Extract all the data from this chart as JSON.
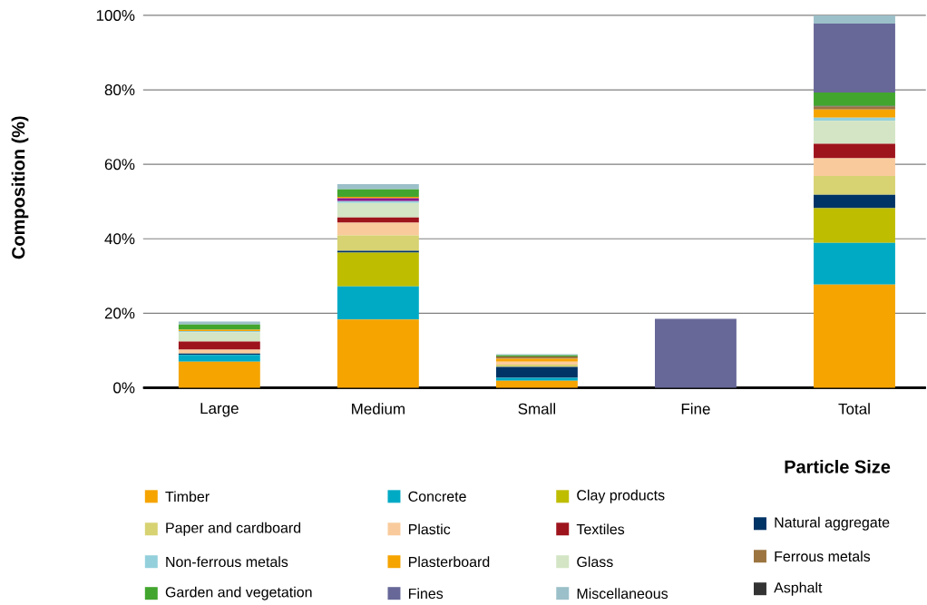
{
  "chart_data": {
    "type": "bar",
    "stacked": true,
    "xlabel": "Particle Size",
    "ylabel": "Composition (%)",
    "categories": [
      "Large",
      "Medium",
      "Small",
      "Fine",
      "Total"
    ],
    "ylim": [
      0,
      100
    ],
    "yticks": [
      {
        "value": 0,
        "label": "0%"
      },
      {
        "value": 20,
        "label": "20%"
      },
      {
        "value": 40,
        "label": "40%"
      },
      {
        "value": 60,
        "label": "60%"
      },
      {
        "value": 80,
        "label": "80%"
      },
      {
        "value": 100,
        "label": "100%"
      }
    ],
    "grid": "y",
    "legend": "bottom",
    "series": [
      {
        "name": "Timber",
        "color": "#f5a400",
        "values": [
          7.0,
          18.3,
          1.9,
          null,
          27.7
        ]
      },
      {
        "name": "Concrete",
        "color": "#00aac5",
        "values": [
          1.8,
          8.9,
          0.8,
          null,
          11.2
        ]
      },
      {
        "name": "Clay products",
        "color": "#bebd00",
        "values": [
          null,
          9.1,
          null,
          null,
          9.3
        ]
      },
      {
        "name": "Natural aggregate",
        "color": "#003366",
        "values": [
          0.4,
          0.5,
          2.9,
          null,
          3.6
        ]
      },
      {
        "name": "Paper and cardboard",
        "color": "#d7d272",
        "values": [
          null,
          4.1,
          0.6,
          null,
          5.1
        ]
      },
      {
        "name": "Plastic",
        "color": "#f9cb9c",
        "values": [
          1.0,
          3.4,
          0.8,
          null,
          4.7
        ]
      },
      {
        "name": "Textiles",
        "color": "#9e141d",
        "values": [
          2.2,
          1.4,
          null,
          null,
          3.9
        ]
      },
      {
        "name": "Glass",
        "color": "#d3e5c4",
        "values": [
          2.5,
          3.9,
          null,
          null,
          6.2
        ]
      },
      {
        "name": "Non-ferrous metals",
        "color": "#93d0dc",
        "values": [
          0.3,
          0.5,
          null,
          null,
          0.8
        ]
      },
      {
        "color": "#8b1a8b",
        "values": [
          null,
          0.8,
          null,
          null,
          null
        ]
      },
      {
        "name": "Plasterboard",
        "color": "#f5a400",
        "values": [
          0.4,
          0.4,
          0.8,
          null,
          2.2
        ]
      },
      {
        "name": "Ferrous metals",
        "color": "#9b7440",
        "values": [
          null,
          null,
          0.6,
          null,
          0.8
        ]
      },
      {
        "name": "Asphalt",
        "color": "#333333",
        "values": [
          null,
          null,
          null,
          null,
          0.2
        ]
      },
      {
        "name": "Garden and vegetation",
        "color": "#42a62e",
        "values": [
          1.4,
          2.0,
          0.3,
          null,
          3.6
        ]
      },
      {
        "name": "Fines",
        "color": "#676898",
        "values": [
          null,
          null,
          null,
          18.5,
          18.5
        ]
      },
      {
        "name": "Miscellaneous",
        "color": "#9cc0c9",
        "values": [
          0.8,
          1.4,
          0.3,
          null,
          2.2
        ]
      }
    ]
  }
}
